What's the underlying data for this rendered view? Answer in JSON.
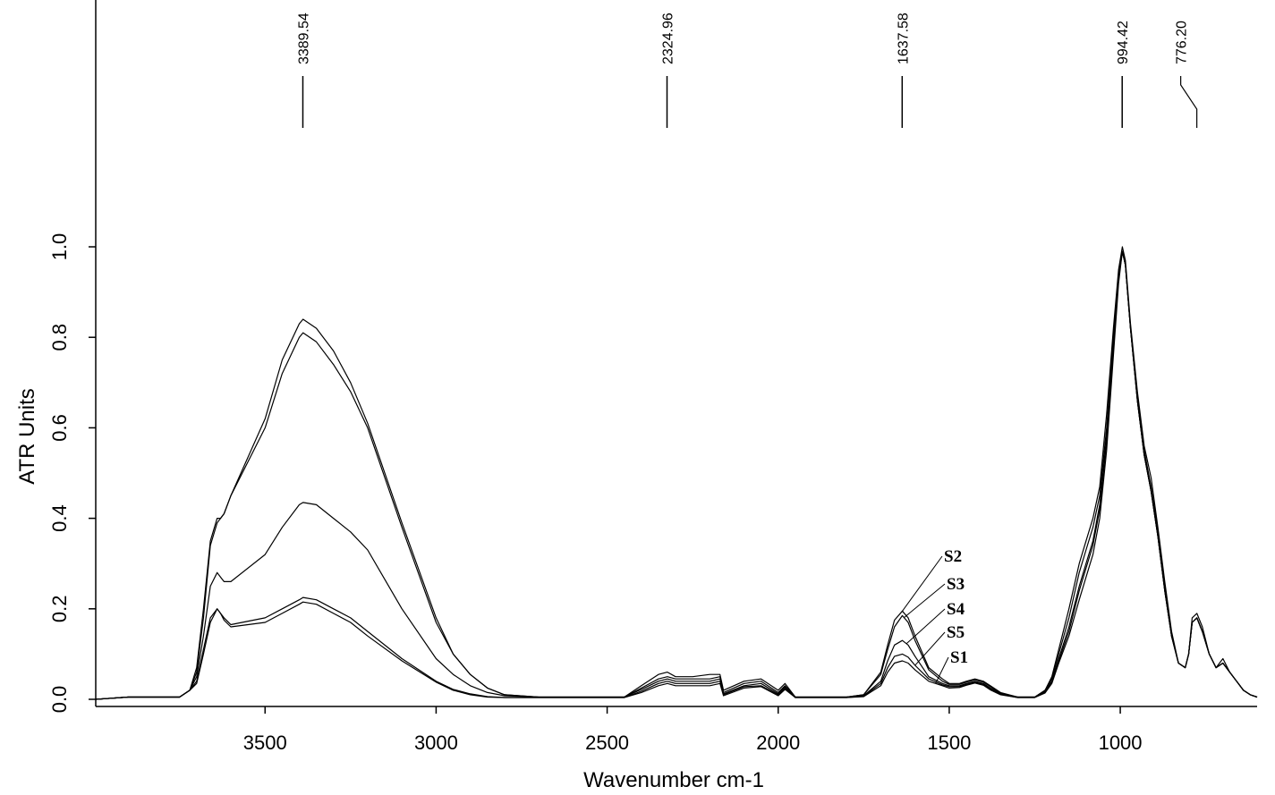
{
  "chart_data": {
    "type": "line",
    "xlabel": "Wavenumber cm-1",
    "ylabel": "ATR Units",
    "xlim": [
      3995,
      600
    ],
    "x_reversed": true,
    "ylim": [
      -0.02,
      1.0
    ],
    "grid": false,
    "x_ticks": [
      {
        "value": 3500,
        "label": "3500"
      },
      {
        "value": 3000,
        "label": "3000"
      },
      {
        "value": 2500,
        "label": "2500"
      },
      {
        "value": 2000,
        "label": "2000"
      },
      {
        "value": 1500,
        "label": "1500"
      },
      {
        "value": 1000,
        "label": "1000"
      }
    ],
    "y_ticks": [
      {
        "value": 0.0,
        "label": "0.0"
      },
      {
        "value": 0.2,
        "label": "0.2"
      },
      {
        "value": 0.4,
        "label": "0.4"
      },
      {
        "value": 0.6,
        "label": "0.6"
      },
      {
        "value": 0.8,
        "label": "0.8"
      },
      {
        "value": 1.0,
        "label": "1.0"
      }
    ],
    "peak_annotations": [
      {
        "x": 3389.54,
        "label": "3389.54"
      },
      {
        "x": 2324.96,
        "label": "2324.96"
      },
      {
        "x": 1637.58,
        "label": "1637.58"
      },
      {
        "x": 994.42,
        "label": "994.42"
      },
      {
        "x": 776.2,
        "label": "776.20"
      }
    ],
    "series": [
      {
        "name": "S2",
        "x": [
          3995,
          3900,
          3750,
          3720,
          3700,
          3680,
          3660,
          3640,
          3630,
          3620,
          3600,
          3500,
          3450,
          3400,
          3389,
          3350,
          3300,
          3250,
          3200,
          3100,
          3000,
          2950,
          2900,
          2850,
          2800,
          2700,
          2600,
          2450,
          2400,
          2350,
          2324,
          2300,
          2250,
          2200,
          2170,
          2160,
          2100,
          2050,
          2000,
          1980,
          1950,
          1850,
          1800,
          1750,
          1700,
          1680,
          1660,
          1637,
          1620,
          1600,
          1560,
          1520,
          1500,
          1470,
          1450,
          1425,
          1400,
          1380,
          1350,
          1300,
          1250,
          1220,
          1200,
          1180,
          1150,
          1120,
          1100,
          1080,
          1060,
          1040,
          1020,
          1005,
          994,
          985,
          970,
          950,
          930,
          910,
          890,
          870,
          850,
          830,
          810,
          800,
          790,
          776,
          760,
          740,
          720,
          700,
          680,
          660,
          640,
          620,
          600
        ],
        "y": [
          0.0,
          0.005,
          0.005,
          0.02,
          0.07,
          0.2,
          0.35,
          0.4,
          0.4,
          0.41,
          0.45,
          0.6,
          0.72,
          0.8,
          0.81,
          0.79,
          0.74,
          0.68,
          0.6,
          0.38,
          0.17,
          0.1,
          0.055,
          0.025,
          0.01,
          0.005,
          0.005,
          0.005,
          0.03,
          0.055,
          0.06,
          0.05,
          0.05,
          0.055,
          0.055,
          0.02,
          0.04,
          0.045,
          0.02,
          0.035,
          0.005,
          0.005,
          0.005,
          0.01,
          0.06,
          0.12,
          0.175,
          0.195,
          0.18,
          0.14,
          0.07,
          0.045,
          0.035,
          0.035,
          0.04,
          0.045,
          0.04,
          0.03,
          0.015,
          0.005,
          0.005,
          0.02,
          0.05,
          0.11,
          0.2,
          0.3,
          0.35,
          0.4,
          0.47,
          0.63,
          0.82,
          0.95,
          1.0,
          0.97,
          0.83,
          0.68,
          0.56,
          0.49,
          0.38,
          0.26,
          0.15,
          0.08,
          0.07,
          0.1,
          0.18,
          0.19,
          0.16,
          0.1,
          0.07,
          0.09,
          0.06,
          0.04,
          0.02,
          0.01,
          0.005
        ]
      },
      {
        "name": "S3",
        "x": [
          3995,
          3900,
          3750,
          3720,
          3700,
          3680,
          3660,
          3640,
          3630,
          3620,
          3600,
          3500,
          3450,
          3400,
          3389,
          3350,
          3300,
          3250,
          3200,
          3100,
          3000,
          2950,
          2900,
          2850,
          2800,
          2700,
          2600,
          2450,
          2400,
          2350,
          2324,
          2300,
          2250,
          2200,
          2170,
          2160,
          2100,
          2050,
          2000,
          1980,
          1950,
          1850,
          1800,
          1750,
          1700,
          1680,
          1660,
          1637,
          1620,
          1600,
          1560,
          1520,
          1500,
          1470,
          1450,
          1425,
          1400,
          1380,
          1350,
          1300,
          1250,
          1220,
          1200,
          1180,
          1150,
          1120,
          1100,
          1080,
          1060,
          1040,
          1020,
          1005,
          994,
          985,
          970,
          950,
          930,
          910,
          890,
          870,
          850,
          830,
          810,
          800,
          790,
          776,
          760,
          740,
          720,
          700,
          680,
          660,
          640,
          620,
          600
        ],
        "y": [
          0.0,
          0.005,
          0.005,
          0.02,
          0.06,
          0.18,
          0.34,
          0.39,
          0.4,
          0.41,
          0.45,
          0.62,
          0.75,
          0.83,
          0.84,
          0.82,
          0.77,
          0.7,
          0.61,
          0.39,
          0.18,
          0.1,
          0.055,
          0.025,
          0.01,
          0.005,
          0.005,
          0.005,
          0.025,
          0.045,
          0.05,
          0.045,
          0.045,
          0.045,
          0.05,
          0.015,
          0.035,
          0.04,
          0.015,
          0.03,
          0.005,
          0.005,
          0.005,
          0.01,
          0.055,
          0.11,
          0.16,
          0.185,
          0.17,
          0.13,
          0.065,
          0.04,
          0.033,
          0.033,
          0.038,
          0.043,
          0.038,
          0.028,
          0.013,
          0.005,
          0.005,
          0.02,
          0.045,
          0.1,
          0.18,
          0.28,
          0.33,
          0.38,
          0.45,
          0.6,
          0.8,
          0.94,
          0.99,
          0.96,
          0.82,
          0.67,
          0.55,
          0.47,
          0.37,
          0.25,
          0.14,
          0.08,
          0.07,
          0.1,
          0.17,
          0.18,
          0.15,
          0.1,
          0.07,
          0.08,
          0.06,
          0.04,
          0.02,
          0.01,
          0.005
        ]
      },
      {
        "name": "S4",
        "x": [
          3995,
          3900,
          3750,
          3720,
          3700,
          3680,
          3660,
          3640,
          3630,
          3620,
          3600,
          3500,
          3450,
          3400,
          3389,
          3350,
          3300,
          3250,
          3200,
          3100,
          3000,
          2950,
          2900,
          2850,
          2800,
          2700,
          2600,
          2450,
          2400,
          2350,
          2324,
          2300,
          2250,
          2200,
          2170,
          2160,
          2100,
          2050,
          2000,
          1980,
          1950,
          1850,
          1800,
          1750,
          1700,
          1680,
          1660,
          1637,
          1620,
          1600,
          1560,
          1520,
          1500,
          1470,
          1450,
          1425,
          1400,
          1380,
          1350,
          1300,
          1250,
          1220,
          1200,
          1180,
          1150,
          1120,
          1100,
          1080,
          1060,
          1040,
          1020,
          1005,
          994,
          985,
          970,
          950,
          930,
          910,
          890,
          870,
          850,
          830,
          810,
          800,
          790,
          776,
          760,
          740,
          720,
          700,
          680,
          660,
          640,
          620,
          600
        ],
        "y": [
          0.0,
          0.005,
          0.005,
          0.02,
          0.05,
          0.14,
          0.25,
          0.28,
          0.27,
          0.26,
          0.26,
          0.32,
          0.38,
          0.43,
          0.435,
          0.43,
          0.4,
          0.37,
          0.33,
          0.2,
          0.09,
          0.055,
          0.03,
          0.015,
          0.008,
          0.005,
          0.005,
          0.005,
          0.022,
          0.04,
          0.045,
          0.04,
          0.04,
          0.04,
          0.045,
          0.012,
          0.03,
          0.035,
          0.012,
          0.028,
          0.005,
          0.005,
          0.005,
          0.008,
          0.04,
          0.085,
          0.12,
          0.13,
          0.12,
          0.095,
          0.05,
          0.035,
          0.03,
          0.03,
          0.035,
          0.04,
          0.035,
          0.025,
          0.012,
          0.005,
          0.005,
          0.018,
          0.04,
          0.09,
          0.16,
          0.25,
          0.3,
          0.35,
          0.43,
          0.58,
          0.78,
          0.93,
          0.99,
          0.96,
          0.82,
          0.66,
          0.54,
          0.46,
          0.36,
          0.24,
          0.14,
          0.08,
          0.07,
          0.1,
          0.17,
          0.18,
          0.15,
          0.1,
          0.07,
          0.08,
          0.06,
          0.04,
          0.02,
          0.01,
          0.005
        ]
      },
      {
        "name": "S5",
        "x": [
          3995,
          3900,
          3750,
          3720,
          3700,
          3680,
          3660,
          3640,
          3630,
          3620,
          3600,
          3500,
          3450,
          3400,
          3389,
          3350,
          3300,
          3250,
          3200,
          3100,
          3000,
          2950,
          2900,
          2850,
          2800,
          2700,
          2600,
          2450,
          2400,
          2350,
          2324,
          2300,
          2250,
          2200,
          2170,
          2160,
          2100,
          2050,
          2000,
          1980,
          1950,
          1850,
          1800,
          1750,
          1700,
          1680,
          1660,
          1637,
          1620,
          1600,
          1560,
          1520,
          1500,
          1470,
          1450,
          1425,
          1400,
          1380,
          1350,
          1300,
          1250,
          1220,
          1200,
          1180,
          1150,
          1120,
          1100,
          1080,
          1060,
          1040,
          1020,
          1005,
          994,
          985,
          970,
          950,
          930,
          910,
          890,
          870,
          850,
          830,
          810,
          800,
          790,
          776,
          760,
          740,
          720,
          700,
          680,
          660,
          640,
          620,
          600
        ],
        "y": [
          0.0,
          0.005,
          0.005,
          0.02,
          0.04,
          0.11,
          0.18,
          0.2,
          0.19,
          0.18,
          0.165,
          0.18,
          0.2,
          0.22,
          0.225,
          0.22,
          0.2,
          0.18,
          0.15,
          0.09,
          0.04,
          0.022,
          0.012,
          0.006,
          0.004,
          0.004,
          0.004,
          0.004,
          0.018,
          0.035,
          0.04,
          0.035,
          0.035,
          0.035,
          0.04,
          0.01,
          0.028,
          0.03,
          0.01,
          0.025,
          0.004,
          0.004,
          0.004,
          0.007,
          0.035,
          0.07,
          0.095,
          0.1,
          0.093,
          0.075,
          0.045,
          0.032,
          0.028,
          0.028,
          0.033,
          0.038,
          0.033,
          0.023,
          0.011,
          0.004,
          0.004,
          0.016,
          0.038,
          0.085,
          0.15,
          0.24,
          0.29,
          0.34,
          0.42,
          0.57,
          0.78,
          0.93,
          0.99,
          0.96,
          0.82,
          0.66,
          0.54,
          0.46,
          0.36,
          0.24,
          0.14,
          0.08,
          0.07,
          0.1,
          0.17,
          0.18,
          0.15,
          0.1,
          0.07,
          0.08,
          0.06,
          0.04,
          0.02,
          0.01,
          0.005
        ]
      },
      {
        "name": "S1",
        "x": [
          3995,
          3900,
          3750,
          3720,
          3700,
          3680,
          3660,
          3640,
          3630,
          3620,
          3600,
          3500,
          3450,
          3400,
          3389,
          3350,
          3300,
          3250,
          3200,
          3100,
          3000,
          2950,
          2900,
          2850,
          2800,
          2700,
          2600,
          2450,
          2400,
          2350,
          2324,
          2300,
          2250,
          2200,
          2170,
          2160,
          2100,
          2050,
          2000,
          1980,
          1950,
          1850,
          1800,
          1750,
          1700,
          1680,
          1660,
          1637,
          1620,
          1600,
          1560,
          1520,
          1500,
          1470,
          1450,
          1425,
          1400,
          1380,
          1350,
          1300,
          1250,
          1220,
          1200,
          1180,
          1150,
          1120,
          1100,
          1080,
          1060,
          1040,
          1020,
          1005,
          994,
          985,
          970,
          950,
          930,
          910,
          890,
          870,
          850,
          830,
          810,
          800,
          790,
          776,
          760,
          740,
          720,
          700,
          680,
          660,
          640,
          620,
          600
        ],
        "y": [
          0.0,
          0.005,
          0.005,
          0.02,
          0.035,
          0.1,
          0.17,
          0.2,
          0.19,
          0.175,
          0.16,
          0.17,
          0.19,
          0.21,
          0.215,
          0.21,
          0.19,
          0.17,
          0.14,
          0.085,
          0.038,
          0.02,
          0.01,
          0.005,
          0.004,
          0.004,
          0.004,
          0.004,
          0.015,
          0.03,
          0.035,
          0.03,
          0.03,
          0.03,
          0.035,
          0.008,
          0.025,
          0.028,
          0.008,
          0.022,
          0.004,
          0.004,
          0.004,
          0.006,
          0.03,
          0.06,
          0.08,
          0.085,
          0.08,
          0.065,
          0.04,
          0.03,
          0.025,
          0.026,
          0.031,
          0.036,
          0.031,
          0.021,
          0.01,
          0.004,
          0.004,
          0.014,
          0.035,
          0.08,
          0.14,
          0.22,
          0.27,
          0.32,
          0.4,
          0.55,
          0.76,
          0.92,
          0.99,
          0.96,
          0.82,
          0.66,
          0.54,
          0.46,
          0.36,
          0.24,
          0.14,
          0.08,
          0.07,
          0.1,
          0.17,
          0.18,
          0.15,
          0.1,
          0.07,
          0.08,
          0.06,
          0.04,
          0.02,
          0.01,
          0.005
        ]
      }
    ]
  }
}
